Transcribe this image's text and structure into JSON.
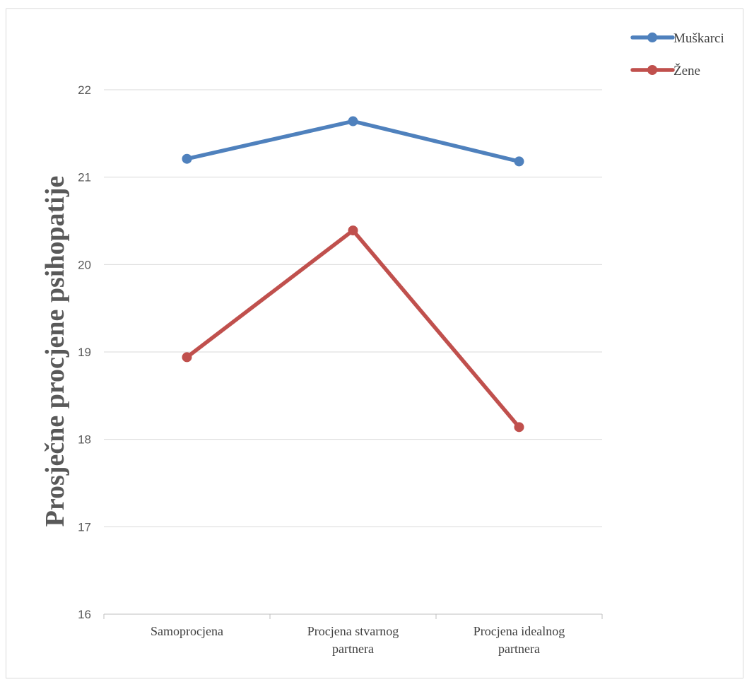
{
  "chart_data": {
    "type": "line",
    "title": "",
    "xlabel": "",
    "ylabel": "Prosječne procjene psihopatije",
    "categories": [
      [
        "Samoprocjena"
      ],
      [
        "Procjena stvarnog",
        "partnera"
      ],
      [
        "Procjena idealnog",
        "partnera"
      ]
    ],
    "ylim": [
      16,
      22
    ],
    "yticks": [
      16,
      17,
      18,
      19,
      20,
      21,
      22
    ],
    "grid": true,
    "legend_position": "top-right",
    "series": [
      {
        "name": "Muškarci",
        "color": "#4f81bd",
        "values": [
          21.21,
          21.64,
          21.18
        ]
      },
      {
        "name": "Žene",
        "color": "#c0504d",
        "values": [
          18.94,
          20.39,
          18.14
        ]
      }
    ]
  }
}
